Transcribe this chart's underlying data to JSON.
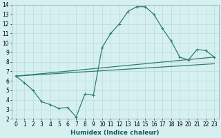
{
  "xlabel": "Humidex (Indice chaleur)",
  "background_color": "#d6f0f0",
  "grid_color": "#c0dede",
  "line_color": "#2e7d6e",
  "xlim": [
    -0.5,
    23.5
  ],
  "ylim": [
    2,
    14
  ],
  "xticks": [
    0,
    1,
    2,
    3,
    4,
    5,
    6,
    7,
    8,
    9,
    10,
    11,
    12,
    13,
    14,
    15,
    16,
    17,
    18,
    19,
    20,
    21,
    22,
    23
  ],
  "yticks": [
    2,
    3,
    4,
    5,
    6,
    7,
    8,
    9,
    10,
    11,
    12,
    13,
    14
  ],
  "series1_x": [
    0,
    1,
    2,
    3,
    4,
    5,
    6,
    7,
    8,
    9,
    10,
    11,
    12,
    13,
    14,
    15,
    16,
    17,
    18,
    19,
    20,
    21,
    22,
    23
  ],
  "series1_y": [
    6.5,
    5.8,
    5.0,
    3.8,
    3.5,
    3.1,
    3.2,
    2.2,
    4.6,
    4.5,
    9.5,
    11.0,
    12.0,
    13.3,
    13.8,
    13.8,
    13.0,
    11.5,
    10.2,
    8.5,
    8.2,
    9.3,
    9.2,
    8.5
  ],
  "series2_x": [
    0,
    23
  ],
  "series2_y": [
    6.5,
    8.5
  ],
  "series3_x": [
    0,
    23
  ],
  "series3_y": [
    6.5,
    7.8
  ],
  "xlabel_fontsize": 6.5,
  "tick_fontsize": 5.5
}
